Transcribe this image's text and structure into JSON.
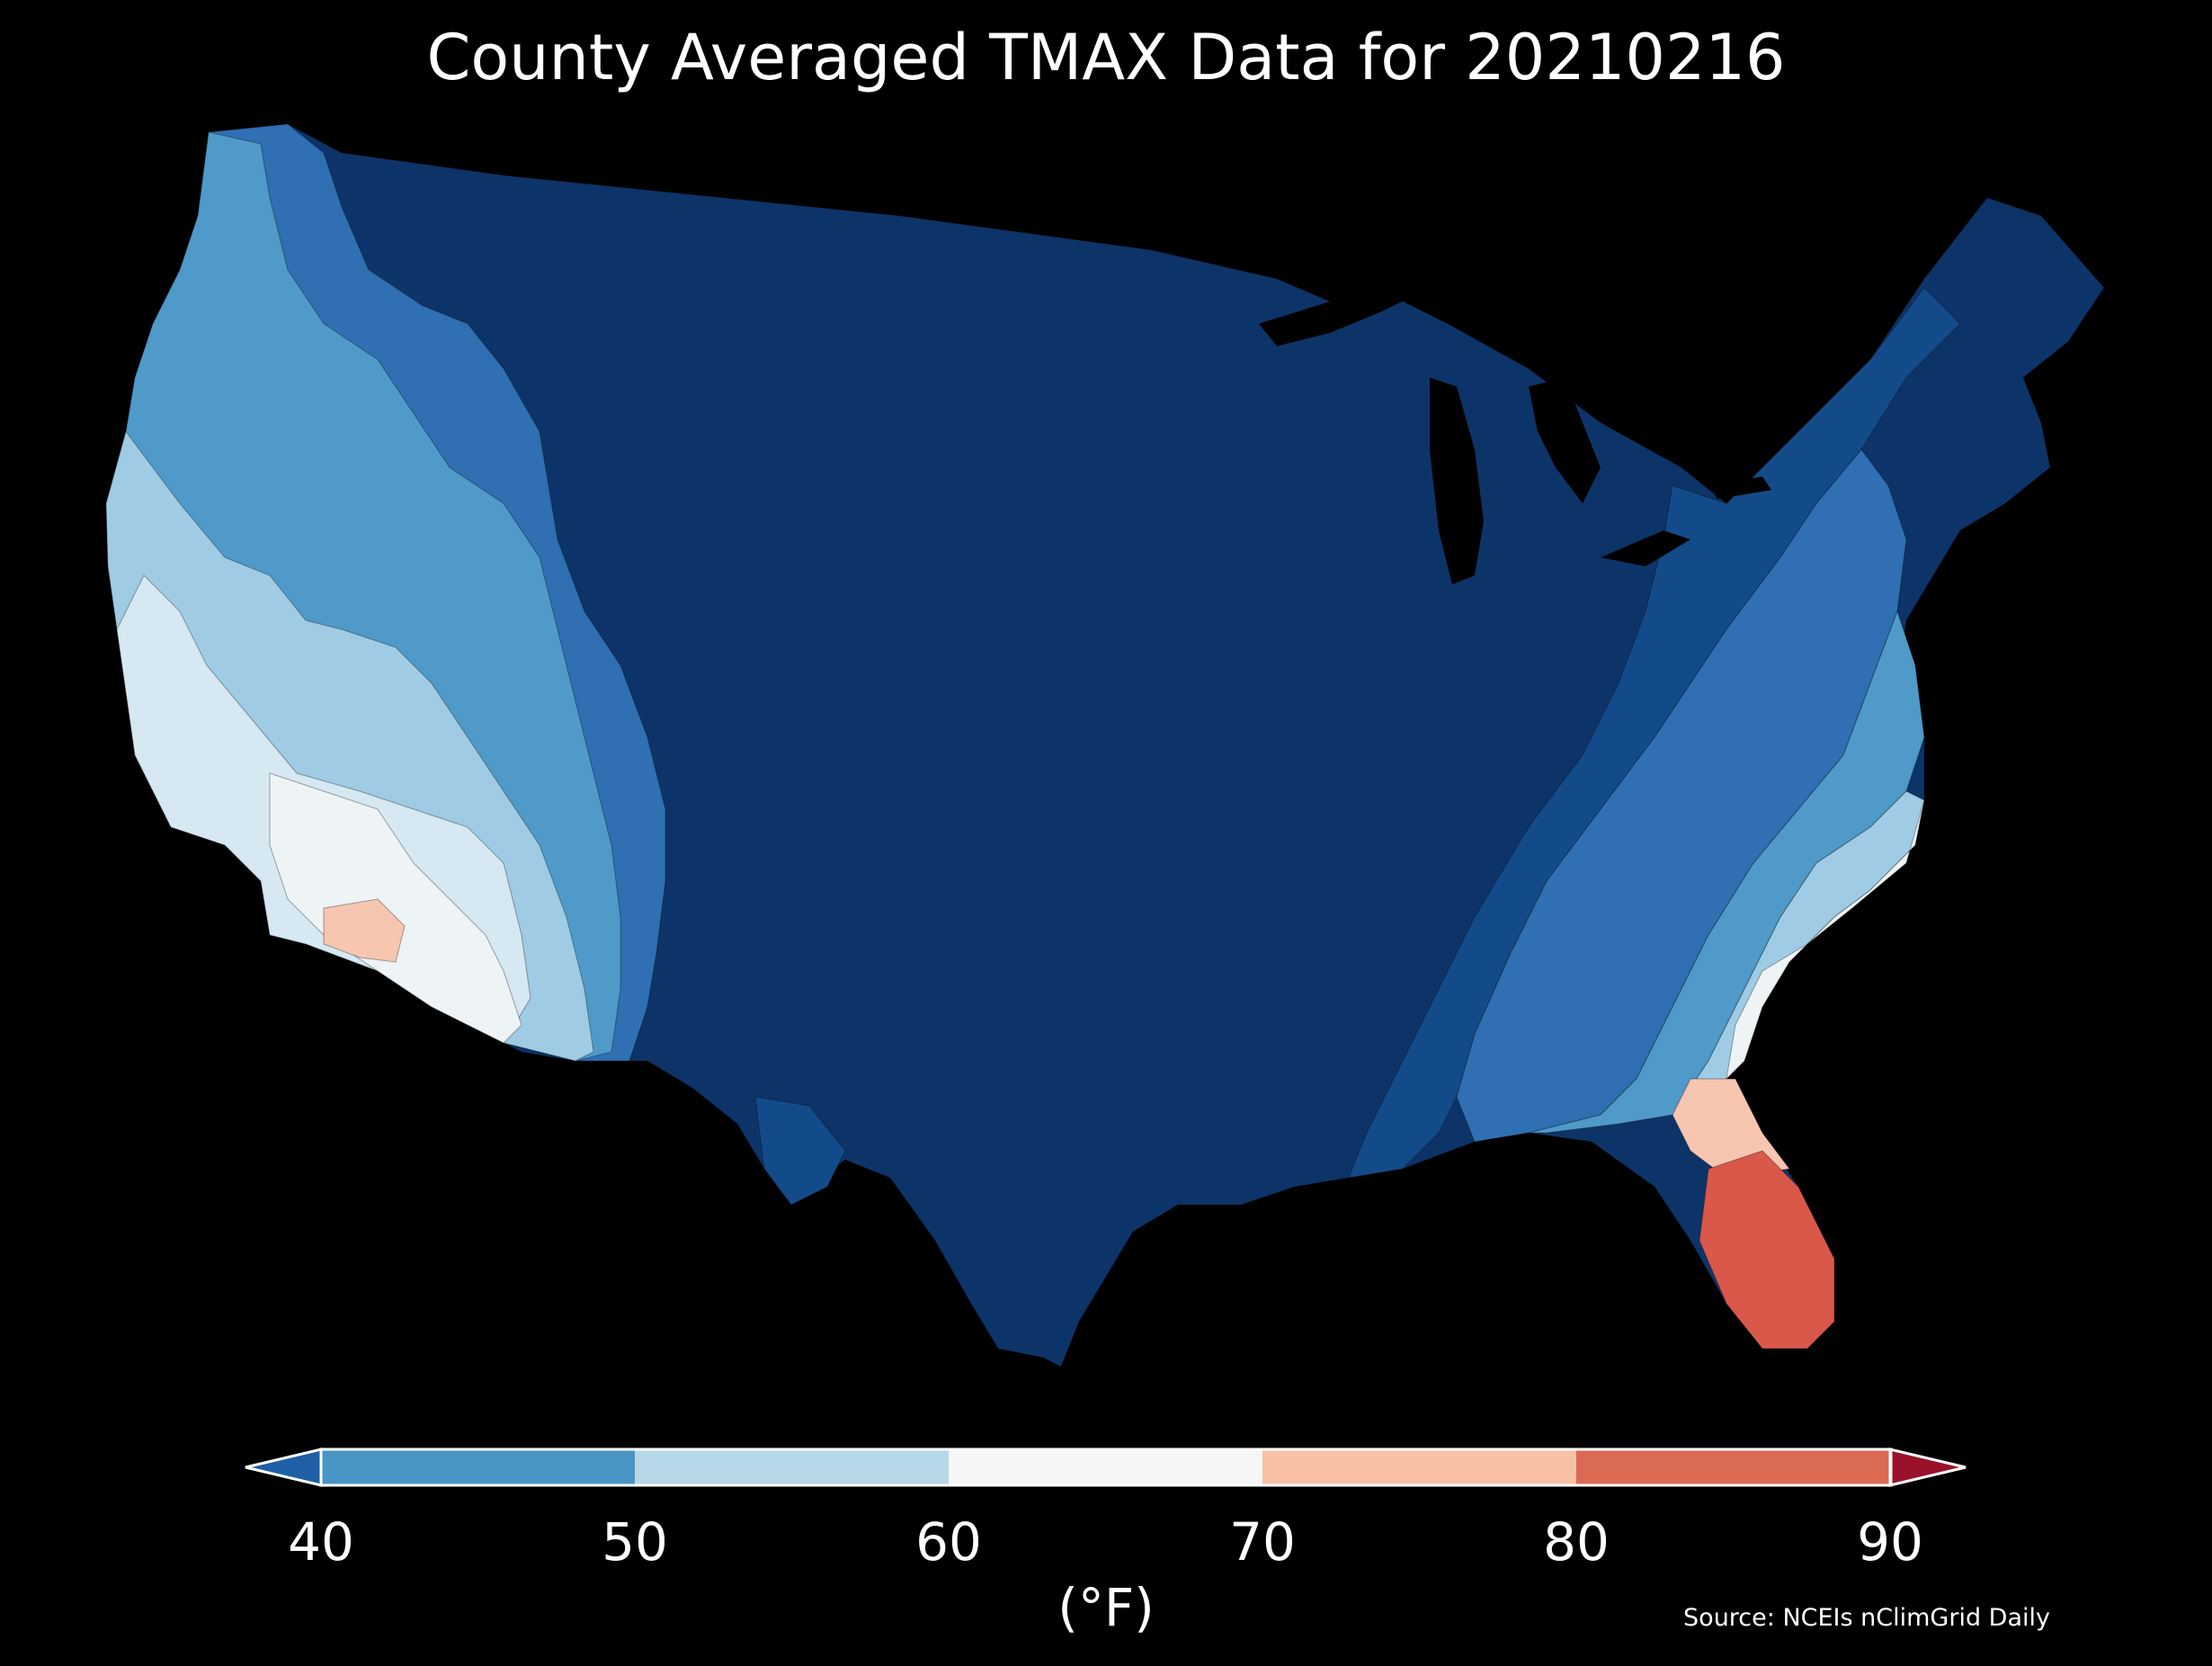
{
  "title": "County Averaged TMAX Data for 20210216",
  "colors": {
    "background": "#000000",
    "text": "#ffffff",
    "water": "#000000"
  },
  "legend": {
    "unit": "(°F)",
    "ticks": [
      "40",
      "50",
      "60",
      "70",
      "80",
      "90"
    ],
    "bins": [
      {
        "range": "<40",
        "color": "#1f5fa6"
      },
      {
        "range": "40-50",
        "color": "#4995c6"
      },
      {
        "range": "50-60",
        "color": "#b6d7e8"
      },
      {
        "range": "60-70",
        "color": "#f6f6f6"
      },
      {
        "range": "70-80",
        "color": "#f8c1a6"
      },
      {
        "range": "80-90",
        "color": "#db6a55"
      },
      {
        "range": ">90",
        "color": "#99112a"
      }
    ]
  },
  "source": "Source: NCEIs nClimGrid Daily",
  "map_regions": {
    "deep_cold": "#0d3468",
    "cold_mid": "#134b8a",
    "cold": "#2f6fb2",
    "cool": "#4f9ac8",
    "mild": "#9fcbe4",
    "near_sixty": "#d6e8f2",
    "sixties": "#eef3f6",
    "seventies": "#f6c6b1",
    "eighties": "#d9584a"
  }
}
